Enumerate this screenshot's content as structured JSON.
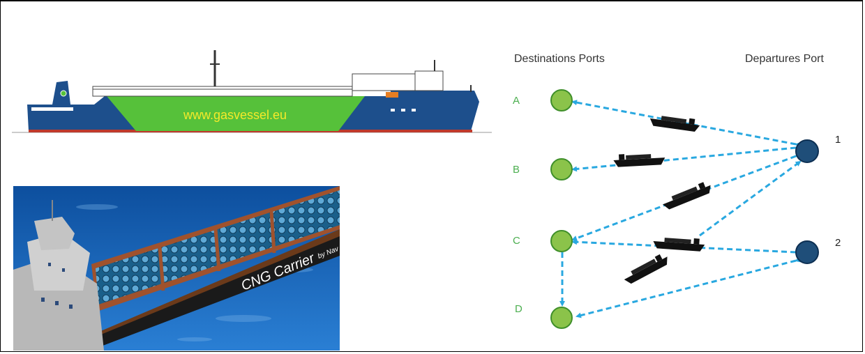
{
  "profile": {
    "hull_text": "www.gasvessel.eu",
    "colors": {
      "hull": "#1d4f8c",
      "cargo": "#56c13a",
      "boot": "#c0392b"
    }
  },
  "render": {
    "hull_text": "CNG Carrier",
    "hull_sub": "by Nav"
  },
  "diagram": {
    "destinations_header": "Destinations Ports",
    "departures_header": "Departures Port",
    "destinations": [
      {
        "id": "A"
      },
      {
        "id": "B"
      },
      {
        "id": "C"
      },
      {
        "id": "D"
      }
    ],
    "departures": [
      {
        "id": "1"
      },
      {
        "id": "2"
      }
    ],
    "colors": {
      "destination": "#8bc34a",
      "departure": "#1f4e79",
      "route": "#29a8e0",
      "label": "#4caf50"
    }
  }
}
